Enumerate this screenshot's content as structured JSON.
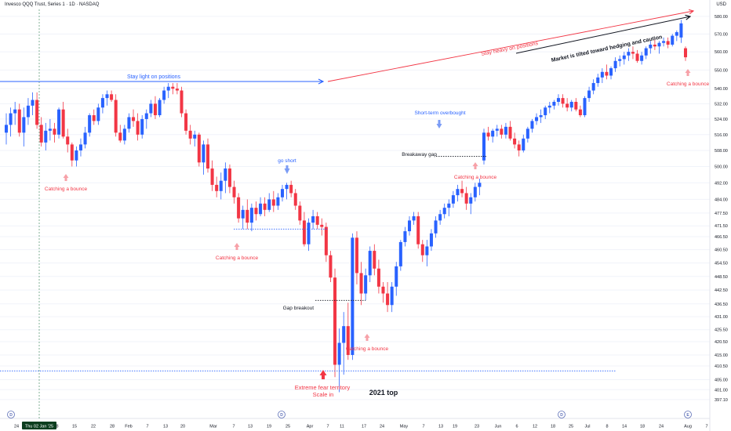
{
  "header": {
    "title": "Invesco QQQ Trust, Series 1 · 1D · NASDAQ",
    "currency": "USD"
  },
  "colors": {
    "up": "#2962ff",
    "down": "#f23645",
    "background": "#ffffff",
    "axis_text": "#131722",
    "grid": "#f0f3fa"
  },
  "chart_data": {
    "type": "candlestick",
    "title": "",
    "yaxis": {
      "scale": "log",
      "range": [
        394,
        584
      ],
      "ticks": [
        397.1,
        401.0,
        405.0,
        410.5,
        415.0,
        420.5,
        425.5,
        431.0,
        436.5,
        442.5,
        448.5,
        454.5,
        460.5,
        466.5,
        471.5,
        477.5,
        484.0,
        492.0,
        500.0,
        508.0,
        516.0,
        524.0,
        532.0,
        540.0,
        550.0,
        560.0,
        570.0,
        580.0
      ],
      "label": "USD",
      "position": "right"
    },
    "xaxis": {
      "ticks": [
        "24",
        "Thu 02 Jan '25",
        "8",
        "15",
        "22",
        "28",
        "Feb",
        "7",
        "13",
        "20",
        "Mar",
        "7",
        "13",
        "19",
        "25",
        "Apr",
        "7",
        "11",
        "17",
        "24",
        "May",
        "7",
        "13",
        "19",
        "23",
        "Jun",
        "6",
        "12",
        "18",
        "25",
        "Jul",
        "8",
        "14",
        "18",
        "24",
        "Aug",
        "7"
      ],
      "highlighted_tick": "Thu 02 Jan '25"
    },
    "grid": true,
    "candles": [
      {
        "o": 517,
        "h": 527,
        "l": 511,
        "c": 521
      },
      {
        "o": 521,
        "h": 530,
        "l": 515,
        "c": 527
      },
      {
        "o": 527,
        "h": 533,
        "l": 521,
        "c": 529
      },
      {
        "o": 529,
        "h": 532,
        "l": 515,
        "c": 517
      },
      {
        "o": 517,
        "h": 530,
        "l": 510,
        "c": 525
      },
      {
        "o": 525,
        "h": 535,
        "l": 521,
        "c": 531
      },
      {
        "o": 531,
        "h": 538,
        "l": 526,
        "c": 534
      },
      {
        "o": 534,
        "h": 538,
        "l": 519,
        "c": 521
      },
      {
        "o": 521,
        "h": 525,
        "l": 510,
        "c": 512
      },
      {
        "o": 512,
        "h": 522,
        "l": 508,
        "c": 518
      },
      {
        "o": 518,
        "h": 524,
        "l": 513,
        "c": 519
      },
      {
        "o": 519,
        "h": 522,
        "l": 512,
        "c": 516
      },
      {
        "o": 516,
        "h": 530,
        "l": 514,
        "c": 529
      },
      {
        "o": 529,
        "h": 533,
        "l": 514,
        "c": 515
      },
      {
        "o": 515,
        "h": 519,
        "l": 507,
        "c": 511
      },
      {
        "o": 511,
        "h": 512,
        "l": 500,
        "c": 503
      },
      {
        "o": 503,
        "h": 510,
        "l": 500,
        "c": 508
      },
      {
        "o": 508,
        "h": 514,
        "l": 505,
        "c": 511
      },
      {
        "o": 511,
        "h": 520,
        "l": 509,
        "c": 517
      },
      {
        "o": 517,
        "h": 527,
        "l": 515,
        "c": 526
      },
      {
        "o": 526,
        "h": 529,
        "l": 521,
        "c": 523
      },
      {
        "o": 523,
        "h": 532,
        "l": 521,
        "c": 530
      },
      {
        "o": 530,
        "h": 537,
        "l": 527,
        "c": 535
      },
      {
        "o": 535,
        "h": 539,
        "l": 531,
        "c": 537
      },
      {
        "o": 537,
        "h": 539,
        "l": 533,
        "c": 534
      },
      {
        "o": 534,
        "h": 537,
        "l": 515,
        "c": 517
      },
      {
        "o": 517,
        "h": 521,
        "l": 512,
        "c": 513
      },
      {
        "o": 513,
        "h": 521,
        "l": 511,
        "c": 519
      },
      {
        "o": 519,
        "h": 527,
        "l": 517,
        "c": 525
      },
      {
        "o": 525,
        "h": 529,
        "l": 520,
        "c": 523
      },
      {
        "o": 523,
        "h": 527,
        "l": 513,
        "c": 516
      },
      {
        "o": 516,
        "h": 526,
        "l": 514,
        "c": 524
      },
      {
        "o": 524,
        "h": 529,
        "l": 519,
        "c": 527
      },
      {
        "o": 527,
        "h": 534,
        "l": 525,
        "c": 532
      },
      {
        "o": 532,
        "h": 536,
        "l": 524,
        "c": 526
      },
      {
        "o": 526,
        "h": 535,
        "l": 525,
        "c": 534
      },
      {
        "o": 534,
        "h": 541,
        "l": 532,
        "c": 539
      },
      {
        "o": 539,
        "h": 543,
        "l": 535,
        "c": 541
      },
      {
        "o": 541,
        "h": 543,
        "l": 537,
        "c": 540
      },
      {
        "o": 540,
        "h": 543,
        "l": 537,
        "c": 539
      },
      {
        "o": 539,
        "h": 541,
        "l": 525,
        "c": 527
      },
      {
        "o": 527,
        "h": 529,
        "l": 516,
        "c": 518
      },
      {
        "o": 518,
        "h": 521,
        "l": 511,
        "c": 514
      },
      {
        "o": 514,
        "h": 518,
        "l": 510,
        "c": 516
      },
      {
        "o": 516,
        "h": 517,
        "l": 500,
        "c": 502
      },
      {
        "o": 502,
        "h": 513,
        "l": 496,
        "c": 511
      },
      {
        "o": 511,
        "h": 514,
        "l": 497,
        "c": 499
      },
      {
        "o": 499,
        "h": 503,
        "l": 488,
        "c": 491
      },
      {
        "o": 491,
        "h": 495,
        "l": 485,
        "c": 488
      },
      {
        "o": 488,
        "h": 497,
        "l": 484,
        "c": 493
      },
      {
        "o": 493,
        "h": 502,
        "l": 487,
        "c": 499
      },
      {
        "o": 499,
        "h": 501,
        "l": 487,
        "c": 490
      },
      {
        "o": 490,
        "h": 493,
        "l": 482,
        "c": 485
      },
      {
        "o": 485,
        "h": 487,
        "l": 473,
        "c": 475
      },
      {
        "o": 475,
        "h": 481,
        "l": 470,
        "c": 479
      },
      {
        "o": 479,
        "h": 484,
        "l": 470,
        "c": 473
      },
      {
        "o": 473,
        "h": 482,
        "l": 469,
        "c": 480
      },
      {
        "o": 480,
        "h": 483,
        "l": 474,
        "c": 477
      },
      {
        "o": 477,
        "h": 485,
        "l": 476,
        "c": 482
      },
      {
        "o": 482,
        "h": 485,
        "l": 476,
        "c": 479
      },
      {
        "o": 479,
        "h": 487,
        "l": 478,
        "c": 484
      },
      {
        "o": 484,
        "h": 488,
        "l": 478,
        "c": 481
      },
      {
        "o": 481,
        "h": 487,
        "l": 479,
        "c": 485
      },
      {
        "o": 485,
        "h": 491,
        "l": 483,
        "c": 489
      },
      {
        "o": 489,
        "h": 492,
        "l": 484,
        "c": 491
      },
      {
        "o": 491,
        "h": 493,
        "l": 485,
        "c": 487
      },
      {
        "o": 487,
        "h": 489,
        "l": 479,
        "c": 481
      },
      {
        "o": 481,
        "h": 483,
        "l": 472,
        "c": 474
      },
      {
        "o": 474,
        "h": 478,
        "l": 462,
        "c": 463
      },
      {
        "o": 463,
        "h": 475,
        "l": 460,
        "c": 473
      },
      {
        "o": 473,
        "h": 479,
        "l": 470,
        "c": 476
      },
      {
        "o": 476,
        "h": 478,
        "l": 470,
        "c": 472
      },
      {
        "o": 472,
        "h": 475,
        "l": 467,
        "c": 471
      },
      {
        "o": 471,
        "h": 473,
        "l": 455,
        "c": 458
      },
      {
        "o": 458,
        "h": 460,
        "l": 446,
        "c": 448
      },
      {
        "o": 448,
        "h": 452,
        "l": 406,
        "c": 411
      },
      {
        "o": 411,
        "h": 426,
        "l": 400,
        "c": 420
      },
      {
        "o": 420,
        "h": 433,
        "l": 407,
        "c": 427
      },
      {
        "o": 427,
        "h": 437,
        "l": 413,
        "c": 415
      },
      {
        "o": 415,
        "h": 468,
        "l": 413,
        "c": 466
      },
      {
        "o": 466,
        "h": 469,
        "l": 445,
        "c": 450
      },
      {
        "o": 450,
        "h": 455,
        "l": 436,
        "c": 441
      },
      {
        "o": 441,
        "h": 452,
        "l": 438,
        "c": 449
      },
      {
        "o": 449,
        "h": 462,
        "l": 446,
        "c": 460
      },
      {
        "o": 460,
        "h": 463,
        "l": 449,
        "c": 452
      },
      {
        "o": 452,
        "h": 456,
        "l": 441,
        "c": 444
      },
      {
        "o": 444,
        "h": 446,
        "l": 437,
        "c": 441
      },
      {
        "o": 441,
        "h": 446,
        "l": 433,
        "c": 436
      },
      {
        "o": 436,
        "h": 446,
        "l": 433,
        "c": 444
      },
      {
        "o": 444,
        "h": 455,
        "l": 440,
        "c": 453
      },
      {
        "o": 453,
        "h": 465,
        "l": 451,
        "c": 464
      },
      {
        "o": 464,
        "h": 471,
        "l": 462,
        "c": 469
      },
      {
        "o": 469,
        "h": 476,
        "l": 467,
        "c": 474
      },
      {
        "o": 474,
        "h": 478,
        "l": 472,
        "c": 476
      },
      {
        "o": 476,
        "h": 478,
        "l": 461,
        "c": 463
      },
      {
        "o": 463,
        "h": 465,
        "l": 455,
        "c": 458
      },
      {
        "o": 458,
        "h": 465,
        "l": 453,
        "c": 462
      },
      {
        "o": 462,
        "h": 470,
        "l": 460,
        "c": 468
      },
      {
        "o": 468,
        "h": 476,
        "l": 466,
        "c": 474
      },
      {
        "o": 474,
        "h": 479,
        "l": 472,
        "c": 477
      },
      {
        "o": 477,
        "h": 482,
        "l": 475,
        "c": 480
      },
      {
        "o": 480,
        "h": 484,
        "l": 476,
        "c": 482
      },
      {
        "o": 482,
        "h": 488,
        "l": 480,
        "c": 486
      },
      {
        "o": 486,
        "h": 491,
        "l": 483,
        "c": 489
      },
      {
        "o": 489,
        "h": 493,
        "l": 485,
        "c": 487
      },
      {
        "o": 487,
        "h": 490,
        "l": 479,
        "c": 482
      },
      {
        "o": 482,
        "h": 487,
        "l": 477,
        "c": 485
      },
      {
        "o": 485,
        "h": 492,
        "l": 483,
        "c": 490
      },
      {
        "o": 490,
        "h": 494,
        "l": 486,
        "c": 492
      },
      {
        "o": 503,
        "h": 519,
        "l": 501,
        "c": 517
      },
      {
        "o": 517,
        "h": 520,
        "l": 513,
        "c": 515
      },
      {
        "o": 515,
        "h": 519,
        "l": 512,
        "c": 518
      },
      {
        "o": 518,
        "h": 521,
        "l": 515,
        "c": 519
      },
      {
        "o": 519,
        "h": 521,
        "l": 514,
        "c": 516
      },
      {
        "o": 516,
        "h": 522,
        "l": 514,
        "c": 520
      },
      {
        "o": 520,
        "h": 523,
        "l": 513,
        "c": 514
      },
      {
        "o": 514,
        "h": 517,
        "l": 509,
        "c": 511
      },
      {
        "o": 511,
        "h": 513,
        "l": 505,
        "c": 508
      },
      {
        "o": 508,
        "h": 516,
        "l": 507,
        "c": 514
      },
      {
        "o": 514,
        "h": 520,
        "l": 512,
        "c": 519
      },
      {
        "o": 519,
        "h": 524,
        "l": 517,
        "c": 523
      },
      {
        "o": 523,
        "h": 527,
        "l": 521,
        "c": 525
      },
      {
        "o": 525,
        "h": 529,
        "l": 522,
        "c": 526
      },
      {
        "o": 526,
        "h": 531,
        "l": 524,
        "c": 530
      },
      {
        "o": 530,
        "h": 533,
        "l": 527,
        "c": 531
      },
      {
        "o": 531,
        "h": 534,
        "l": 529,
        "c": 533
      },
      {
        "o": 533,
        "h": 537,
        "l": 531,
        "c": 535
      },
      {
        "o": 535,
        "h": 537,
        "l": 530,
        "c": 532
      },
      {
        "o": 532,
        "h": 535,
        "l": 528,
        "c": 530
      },
      {
        "o": 530,
        "h": 534,
        "l": 528,
        "c": 533
      },
      {
        "o": 533,
        "h": 535,
        "l": 528,
        "c": 529
      },
      {
        "o": 529,
        "h": 531,
        "l": 525,
        "c": 526
      },
      {
        "o": 526,
        "h": 536,
        "l": 525,
        "c": 535
      },
      {
        "o": 535,
        "h": 541,
        "l": 533,
        "c": 539
      },
      {
        "o": 539,
        "h": 545,
        "l": 537,
        "c": 543
      },
      {
        "o": 543,
        "h": 548,
        "l": 541,
        "c": 546
      },
      {
        "o": 546,
        "h": 551,
        "l": 543,
        "c": 549
      },
      {
        "o": 549,
        "h": 553,
        "l": 545,
        "c": 547
      },
      {
        "o": 547,
        "h": 552,
        "l": 545,
        "c": 551
      },
      {
        "o": 551,
        "h": 557,
        "l": 549,
        "c": 555
      },
      {
        "o": 555,
        "h": 558,
        "l": 552,
        "c": 556
      },
      {
        "o": 556,
        "h": 560,
        "l": 553,
        "c": 558
      },
      {
        "o": 558,
        "h": 562,
        "l": 555,
        "c": 560
      },
      {
        "o": 560,
        "h": 563,
        "l": 556,
        "c": 559
      },
      {
        "o": 559,
        "h": 561,
        "l": 554,
        "c": 555
      },
      {
        "o": 555,
        "h": 560,
        "l": 553,
        "c": 558
      },
      {
        "o": 558,
        "h": 563,
        "l": 556,
        "c": 562
      },
      {
        "o": 562,
        "h": 566,
        "l": 559,
        "c": 564
      },
      {
        "o": 564,
        "h": 567,
        "l": 561,
        "c": 563
      },
      {
        "o": 563,
        "h": 566,
        "l": 559,
        "c": 565
      },
      {
        "o": 565,
        "h": 568,
        "l": 563,
        "c": 566
      },
      {
        "o": 566,
        "h": 568,
        "l": 562,
        "c": 564
      },
      {
        "o": 564,
        "h": 570,
        "l": 563,
        "c": 569
      },
      {
        "o": 569,
        "h": 572,
        "l": 566,
        "c": 571
      },
      {
        "o": 568,
        "h": 578,
        "l": 565,
        "c": 576
      },
      {
        "o": 562,
        "h": 563,
        "l": 555,
        "c": 557
      }
    ],
    "annotations": [
      {
        "text": "Stay light on positions",
        "color": "#2962ff"
      },
      {
        "text": "Stay heavy on positions",
        "color": "#f23645"
      },
      {
        "text": "Market is tilted toward hedging and caution",
        "color": "#131722"
      },
      {
        "text": "Catching a bounce",
        "color": "#f23645"
      },
      {
        "text": "Catching a bounce",
        "color": "#f23645"
      },
      {
        "text": "Catching a bounce",
        "color": "#f23645"
      },
      {
        "text": "Catching a bounce",
        "color": "#f23645"
      },
      {
        "text": "Catching a bounce",
        "color": "#f23645"
      },
      {
        "text": "go short",
        "color": "#2962ff"
      },
      {
        "text": "Short-term overbought",
        "color": "#2962ff"
      },
      {
        "text": "Breakaway gap",
        "color": "#131722"
      },
      {
        "text": "Gap breakout",
        "color": "#131722"
      },
      {
        "text": "Extreme fear territory",
        "color": "#f23645"
      },
      {
        "text": "Scale in",
        "color": "#f23645"
      },
      {
        "text": "2021 top",
        "color": "#131722"
      }
    ],
    "event_markers": [
      "D",
      "D",
      "D",
      "E"
    ]
  }
}
